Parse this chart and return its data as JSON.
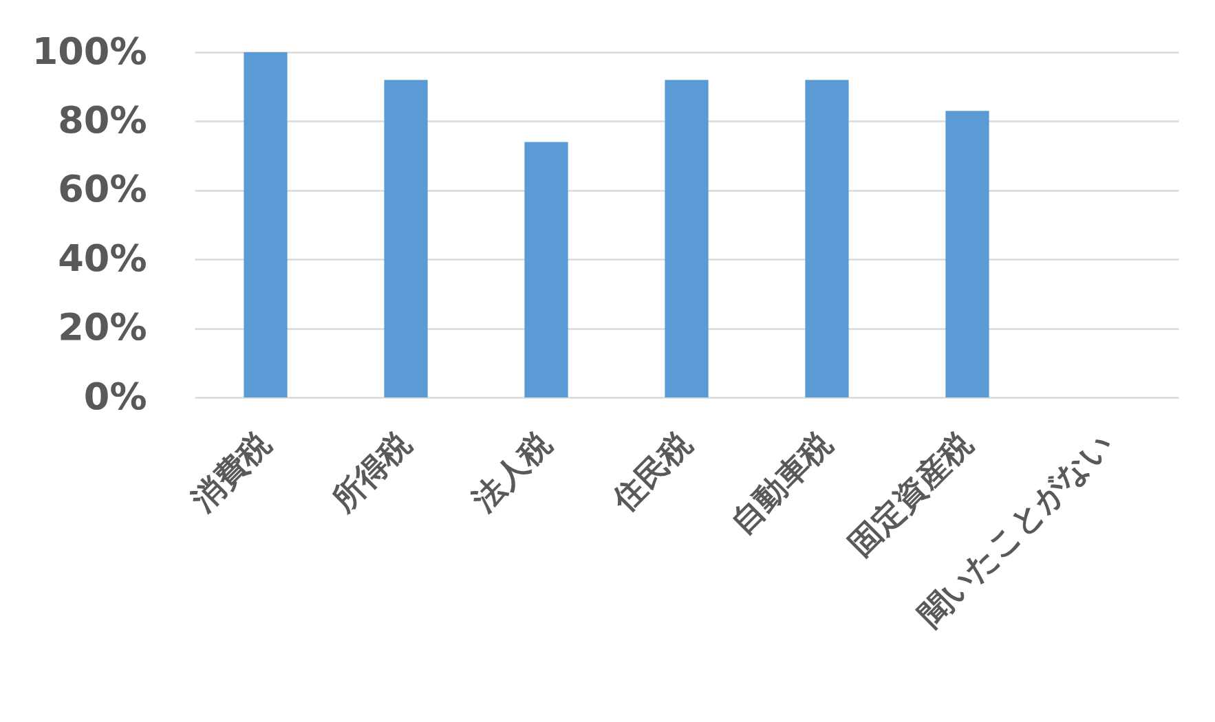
{
  "chart_data": {
    "type": "bar",
    "categories": [
      "消費税",
      "所得税",
      "法人税",
      "住民税",
      "自動車税",
      "固定資産税",
      "聞いたことがない"
    ],
    "values": [
      100,
      92,
      74,
      92,
      92,
      83,
      0
    ],
    "color": "#5b9bd5",
    "ylim": [
      0,
      100
    ],
    "yticks": [
      {
        "value": 0,
        "label": "0%"
      },
      {
        "value": 20,
        "label": "20%"
      },
      {
        "value": 40,
        "label": "40%"
      },
      {
        "value": 60,
        "label": "60%"
      },
      {
        "value": 80,
        "label": "80%"
      },
      {
        "value": 100,
        "label": "100%"
      }
    ],
    "grid": true
  }
}
